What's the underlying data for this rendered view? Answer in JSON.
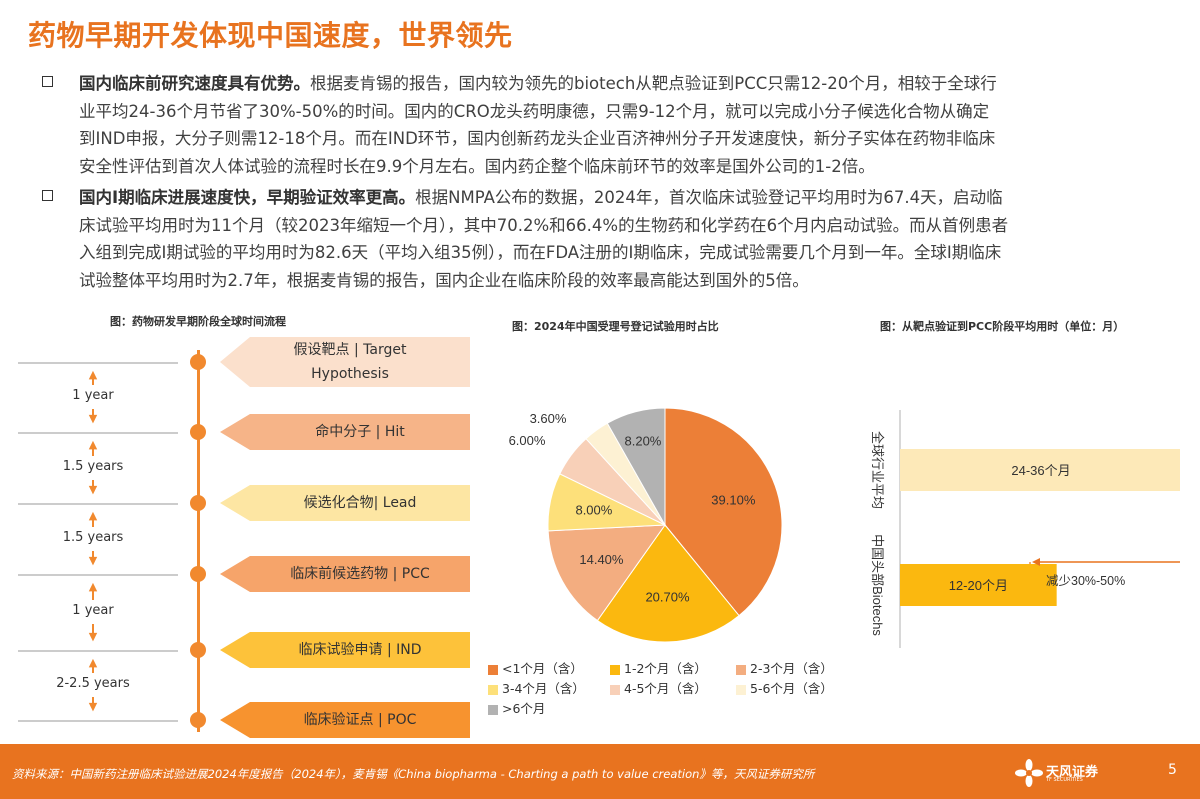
{
  "title": "药物早期开发体现中国速度，世界领先",
  "bullets": [
    {
      "bold": "国内临床前研究速度具有优势。",
      "lines": [
        "根据麦肯锡的报告，国内较为领先的biotech从靶点验证到PCC只需12-20个月，相较于全球行",
        "业平均24-36个月节省了30%-50%的时间。国内的CRO龙头药明康德，只需9-12个月，就可以完成小分子候选化合物从确定",
        "到IND申报，大分子则需12-18个月。而在IND环节，国内创新药龙头企业百济神州分子开发速度快，新分子实体在药物非临床",
        "安全性评估到首次人体试验的流程时长在9.9个月左右。国内药企整个临床前环节的效率是国外公司的1-2倍。"
      ]
    },
    {
      "bold": "国内I期临床进展速度快，早期验证效率更高。",
      "lines": [
        "根据NMPA公布的数据，2024年，首次临床试验登记平均用时为67.4天，启动临",
        "床试验平均用时为11个月（较2023年缩短一个月），其中70.2%和66.4%的生物药和化学药在6个月内启动试验。而从首例患者",
        "入组到完成I期试验的平均用时为82.6天（平均入组35例），而在FDA注册的I期临床，完成试验需要几个月到一年。全球I期临床",
        "试验整体平均用时为2.7年，根据麦肯锡的报告，国内企业在临床阶段的效率最高能达到国外的5倍。"
      ]
    }
  ],
  "timeline": {
    "caption": "图：药物研发早期阶段全球时间流程",
    "stages": [
      {
        "label": "假设靶点 | Target Hypothesis",
        "color": "#fbe0cc"
      },
      {
        "label": "命中分子 | Hit",
        "color": "#f6b488"
      },
      {
        "label": "候选化合物| Lead",
        "color": "#fde6a3"
      },
      {
        "label": "临床前候选药物 | PCC",
        "color": "#f6a46a"
      },
      {
        "label": "临床试验申请 | IND",
        "color": "#fdc23a"
      },
      {
        "label": "临床验证点 | POC",
        "color": "#f7932f"
      }
    ],
    "durations": [
      "1 year",
      "1.5 years",
      "1.5 years",
      "1 year",
      "2-2.5 years"
    ]
  },
  "pie": {
    "caption": "图：2024年中国受理号登记试验用时占比",
    "chart_data": {
      "type": "pie",
      "title": "2024年中国受理号登记试验用时占比",
      "slices": [
        {
          "name": "<1个月（含）",
          "value": 39.1,
          "label": "39.10%",
          "color": "#ec7f37"
        },
        {
          "name": "1-2个月（含）",
          "value": 20.7,
          "label": "20.70%",
          "color": "#fbb80f"
        },
        {
          "name": "2-3个月（含）",
          "value": 14.4,
          "label": "14.40%",
          "color": "#f3ad80"
        },
        {
          "name": "3-4个月（含）",
          "value": 8.0,
          "label": "8.00%",
          "color": "#fde07a"
        },
        {
          "name": "4-5个月（含）",
          "value": 6.0,
          "label": "6.00%",
          "color": "#f8d0b8"
        },
        {
          "name": "5-6个月（含）",
          "value": 3.6,
          "label": "3.60%",
          "color": "#fdf1d3"
        },
        {
          "name": ">6个月",
          "value": 8.2,
          "label": "8.20%",
          "color": "#b2b2b2"
        }
      ]
    }
  },
  "bar": {
    "caption": "图：从靶点验证到PCC阶段平均用时（单位：月）",
    "chart_data": {
      "type": "bar",
      "orientation": "horizontal",
      "categories": [
        "全球行业平均",
        "中国头部Biotechs"
      ],
      "value_labels": [
        "24-36个月",
        "12-20个月"
      ],
      "ranges": [
        [
          24,
          36
        ],
        [
          12,
          20
        ]
      ],
      "colors": [
        "#fde9b8",
        "#fbb80f"
      ],
      "annotation": "减少30%-50%"
    }
  },
  "footer": {
    "source": "资料来源：中国新药注册临床试验进展2024年度报告（2024年），麦肯锡《China biopharma - Charting a path to value creation》等，天风证券研究所",
    "brand": "天风证券",
    "brand_sub": "TF SECURITIES",
    "page": "5"
  }
}
